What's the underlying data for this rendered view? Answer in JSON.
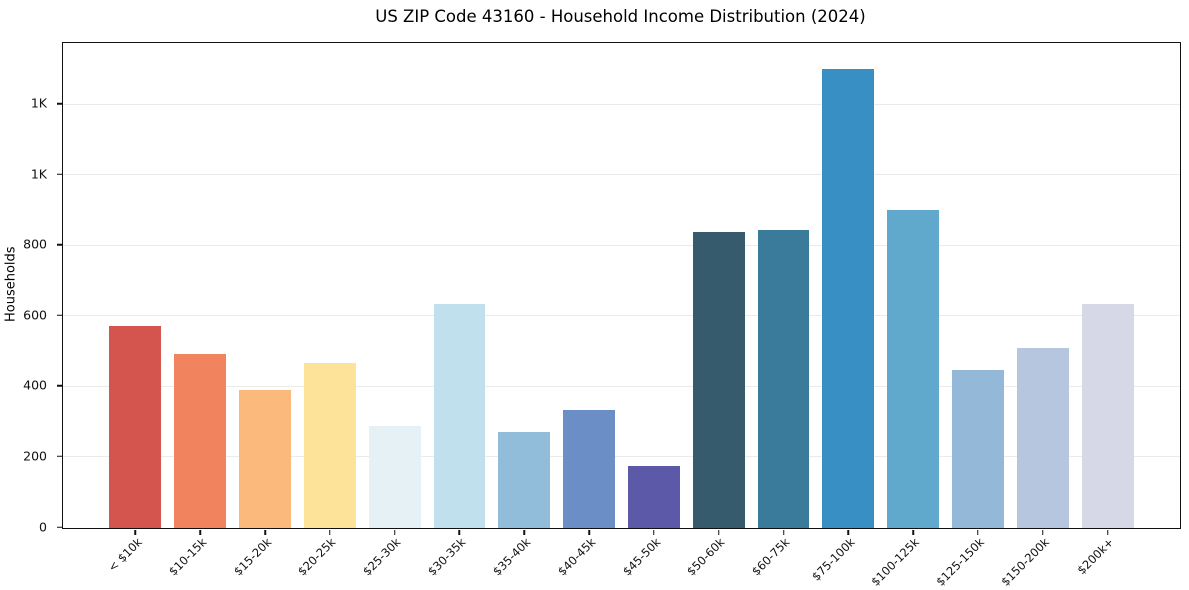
{
  "chart_data": {
    "type": "bar",
    "title": "US ZIP Code 43160 - Household Income Distribution (2024)",
    "xlabel": "",
    "ylabel": "Households",
    "categories": [
      "< $10k",
      "$10-15k",
      "$15-20k",
      "$20-25k",
      "$25-30k",
      "$30-35k",
      "$35-40k",
      "$40-45k",
      "$45-50k",
      "$50-60k",
      "$60-75k",
      "$75-100k",
      "$100-125k",
      "$125-150k",
      "$150-200k",
      "$200k+"
    ],
    "values": [
      572,
      493,
      392,
      469,
      288,
      636,
      271,
      334,
      177,
      838,
      844,
      1300,
      901,
      448,
      511,
      635
    ],
    "bar_colors": [
      "#d4544e",
      "#f1845f",
      "#fbba7c",
      "#fde39a",
      "#e6f1f5",
      "#bfe0ec",
      "#92bdda",
      "#6b8ec6",
      "#5c59a8",
      "#365b6d",
      "#3a7b9c",
      "#378fc4",
      "#60a8cc",
      "#93b8d8",
      "#b5c6de",
      "#d6d8e8"
    ],
    "ylim": [
      0,
      1375
    ],
    "yticks": [
      {
        "value": 0,
        "label": "0"
      },
      {
        "value": 200,
        "label": "200"
      },
      {
        "value": 400,
        "label": "400"
      },
      {
        "value": 600,
        "label": "600"
      },
      {
        "value": 800,
        "label": "800"
      },
      {
        "value": 1000,
        "label": "1K"
      },
      {
        "value": 1200,
        "label": "1K"
      }
    ],
    "grid": "horizontal",
    "gridline_color": "#ebebeb",
    "axis_color": "#111111",
    "background": "#ffffff",
    "legend": "none"
  }
}
